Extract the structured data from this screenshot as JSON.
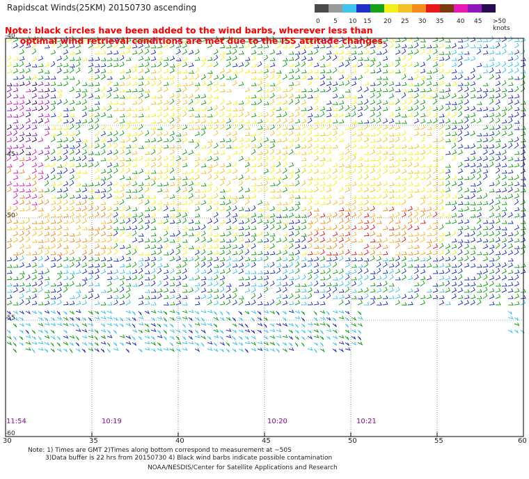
{
  "title": "Rapidscat Winds(25KM) 20150730 ascending",
  "note": {
    "line1": "Note: black circles have been added to the wind barbs, wherever less than",
    "line2": "optimal wind retrieval conditions are met due to the ISS attitude changes."
  },
  "legend": {
    "swatches": [
      {
        "color": "#4a4a4a"
      },
      {
        "color": "#9b9b9b"
      },
      {
        "color": "#3fc4ee"
      },
      {
        "color": "#1f2fc8"
      },
      {
        "color": "#13a313"
      },
      {
        "color": "#f2f21a"
      },
      {
        "color": "#f5c02a"
      },
      {
        "color": "#f28c1a"
      },
      {
        "color": "#e81818"
      },
      {
        "color": "#7a3a0a"
      },
      {
        "color": "#e51ab2"
      },
      {
        "color": "#8e18b8"
      },
      {
        "color": "#2a0a50"
      }
    ],
    "labels": [
      "0",
      "5",
      "10",
      "15",
      "20",
      "25",
      "30",
      "35",
      "40",
      "45",
      ">50 knots"
    ]
  },
  "map": {
    "lon_ticks": [
      "30",
      "35",
      "40",
      "45",
      "50",
      "55",
      "60"
    ],
    "lat_ticks": [
      "-40",
      "-45",
      "-50",
      "-55",
      "-60"
    ],
    "times": [
      "11:54",
      "10:19",
      "10:20",
      "10:21"
    ]
  },
  "footer": {
    "line1": "Note: 1) Times are GMT 2)Times along bottom correspond to measurement at ~50S",
    "line2": "3)Data buffer is 22 hrs from 20150730 4) Black wind barbs indicate possible contamination",
    "line3": "NOAA/NESDIS/Center for Satellite Applications and Research"
  }
}
